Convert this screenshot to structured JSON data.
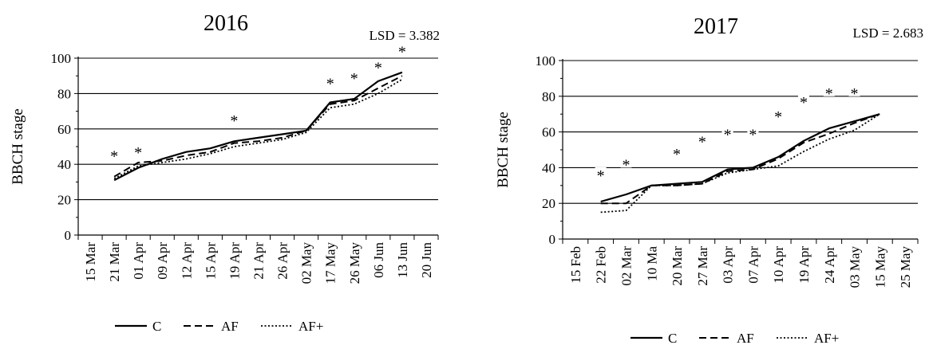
{
  "chart_data": [
    {
      "type": "line",
      "title": "2016",
      "annotation": "LSD = 3.382",
      "ylabel": "BBCH stage",
      "xlabel": "",
      "ylim": [
        0,
        100
      ],
      "yticks": [
        "0",
        "20",
        "40",
        "60",
        "80",
        "100"
      ],
      "grid": true,
      "legend_position": "bottom",
      "categories": [
        "15 Mar",
        "21 Mar",
        "01 Apr",
        "09 Apr",
        "12 Apr",
        "15 Apr",
        "19 Apr",
        "21 Apr",
        "26 Apr",
        "02 May",
        "17 May",
        "26 May",
        "06 Jun",
        "13 Jun",
        "20 Jun"
      ],
      "series": [
        {
          "name": "C",
          "style": "solid",
          "values": [
            null,
            31,
            38,
            43,
            47,
            49,
            53,
            55,
            57,
            59,
            75,
            77,
            87,
            92,
            null
          ]
        },
        {
          "name": "AF",
          "style": "dashed",
          "values": [
            null,
            33,
            41,
            42,
            45,
            47,
            52,
            53,
            55,
            59,
            74,
            76,
            83,
            90,
            null
          ]
        },
        {
          "name": "AF+",
          "style": "dotted",
          "values": [
            null,
            32,
            39,
            41,
            43,
            46,
            50,
            52,
            54,
            58,
            72,
            74,
            80,
            88,
            null
          ]
        }
      ],
      "significance": [
        {
          "category": "21 Mar",
          "label": "*",
          "y": 43
        },
        {
          "category": "01 Apr",
          "label": "*",
          "y": 45
        },
        {
          "category": "19 Apr",
          "label": "*",
          "y": 63
        },
        {
          "category": "17 May",
          "label": "*",
          "y": 84
        },
        {
          "category": "26 May",
          "label": "*",
          "y": 87
        },
        {
          "category": "06 Jun",
          "label": "*",
          "y": 93
        },
        {
          "category": "13 Jun",
          "label": "*",
          "y": 102
        }
      ]
    },
    {
      "type": "line",
      "title": "2017",
      "annotation": "LSD = 2.683",
      "ylabel": "BBCH stage",
      "xlabel": "",
      "ylim": [
        0,
        100
      ],
      "yticks": [
        "0",
        "20",
        "40",
        "60",
        "80",
        "100"
      ],
      "grid": true,
      "legend_position": "bottom",
      "categories": [
        "15 Feb",
        "22 Feb",
        "02 Mar",
        "10 Ma",
        "20 Mar",
        "27 Mar",
        "03 Apr",
        "07 Apr",
        "10 Apr",
        "19 Apr",
        "24 Apr",
        "03 May",
        "15 May",
        "25 May"
      ],
      "series": [
        {
          "name": "C",
          "style": "solid",
          "values": [
            null,
            21,
            25,
            30,
            31,
            32,
            39,
            40,
            46,
            55,
            62,
            66,
            70,
            null
          ]
        },
        {
          "name": "AF",
          "style": "dashed",
          "values": [
            null,
            20,
            20,
            30,
            30,
            31,
            38,
            39,
            45,
            54,
            59,
            65,
            70,
            null
          ]
        },
        {
          "name": "AF+",
          "style": "dotted",
          "values": [
            null,
            15,
            16,
            30,
            30,
            31,
            37,
            39,
            41,
            49,
            56,
            61,
            70,
            null
          ]
        }
      ],
      "significance": [
        {
          "category": "22 Feb",
          "label": "*",
          "y": 34
        },
        {
          "category": "02 Mar",
          "label": "*",
          "y": 40
        },
        {
          "category": "20 Mar",
          "label": "*",
          "y": 46
        },
        {
          "category": "27 Mar",
          "label": "*",
          "y": 53
        },
        {
          "category": "03 Apr",
          "label": "*",
          "y": 57
        },
        {
          "category": "07 Apr",
          "label": "*",
          "y": 57
        },
        {
          "category": "10 Apr",
          "label": "*",
          "y": 67
        },
        {
          "category": "19 Apr",
          "label": "*",
          "y": 75
        },
        {
          "category": "24 Apr",
          "label": "*",
          "y": 80
        },
        {
          "category": "03 May",
          "label": "*",
          "y": 80
        }
      ]
    }
  ]
}
